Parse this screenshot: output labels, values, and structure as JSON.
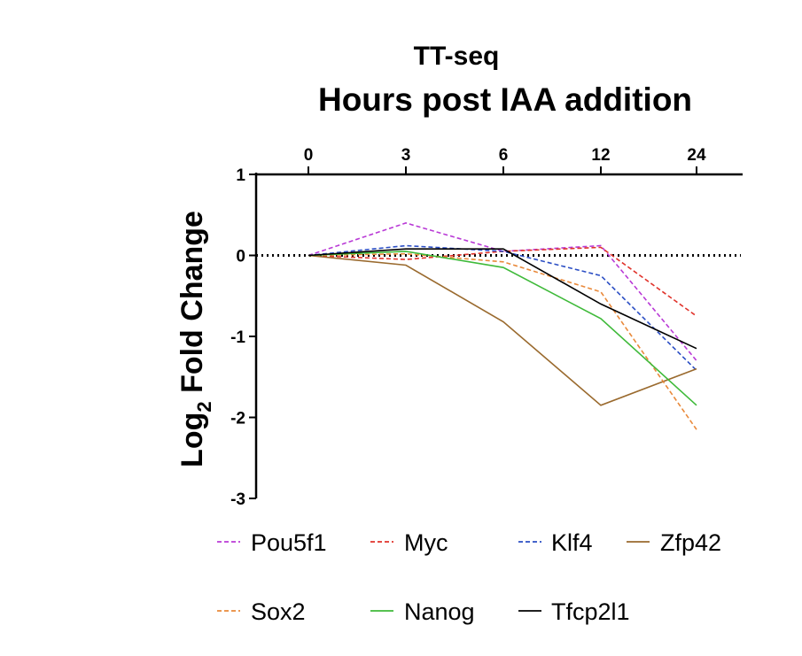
{
  "chart_data": {
    "type": "line",
    "title": "TT-seq",
    "subtitle": "Hours post IAA addition",
    "ylabel_main": "Log",
    "ylabel_sub": "2",
    "ylabel_rest": " Fold Change",
    "x": [
      "0",
      "3",
      "6",
      "12",
      "24"
    ],
    "ylim": [
      -3,
      1
    ],
    "yticks": [
      1,
      0,
      -1,
      -2,
      -3
    ],
    "y_tick_labels": [
      "1",
      "0",
      "-1",
      "-2",
      "-3"
    ],
    "reference_line_y": 0,
    "series": [
      {
        "name": "Pou5f1",
        "color": "#b93ad6",
        "dashed": true,
        "values": [
          0,
          0.4,
          0.05,
          0.12,
          -1.3
        ]
      },
      {
        "name": "Myc",
        "color": "#e0332b",
        "dashed": true,
        "values": [
          0,
          -0.05,
          0.05,
          0.1,
          -0.75
        ]
      },
      {
        "name": "Klf4",
        "color": "#2b4ec4",
        "dashed": true,
        "values": [
          0,
          0.12,
          0.05,
          -0.25,
          -1.42
        ]
      },
      {
        "name": "Zfp42",
        "color": "#9a6a2e",
        "dashed": false,
        "values": [
          0,
          -0.12,
          -0.82,
          -1.85,
          -1.4
        ]
      },
      {
        "name": "Sox2",
        "color": "#e9893a",
        "dashed": true,
        "values": [
          0,
          0.02,
          -0.08,
          -0.45,
          -2.15
        ]
      },
      {
        "name": "Nanog",
        "color": "#3fba3a",
        "dashed": false,
        "values": [
          0,
          0.05,
          -0.15,
          -0.78,
          -1.85
        ]
      },
      {
        "name": "Tfcp2l1",
        "color": "#000000",
        "dashed": false,
        "values": [
          0,
          0.08,
          0.08,
          -0.6,
          -1.15
        ]
      }
    ]
  }
}
